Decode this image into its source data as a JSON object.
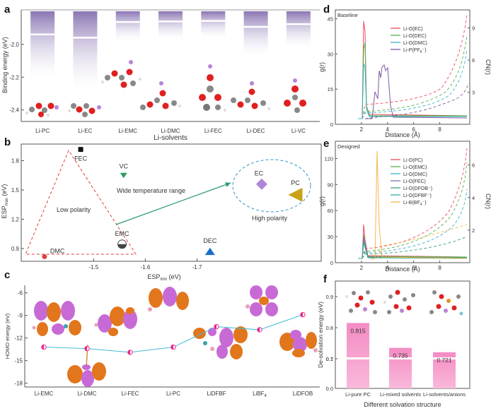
{
  "panel_labels": {
    "a": "a",
    "b": "b",
    "c": "c",
    "d": "d",
    "e": "e",
    "f": "f"
  },
  "chart_data": [
    {
      "panel": "a",
      "type": "bar",
      "xlabel": "Li-solvents",
      "ylabel": "Binding energy (eV)",
      "categories": [
        "Li-PC",
        "Li-EC",
        "Li-EMC",
        "Li-DMC",
        "Li-FEC",
        "Li-DEC",
        "Li-VC"
      ],
      "values": [
        -2.21,
        -2.27,
        -1.98,
        -1.97,
        -1.96,
        -2.07,
        -2.02
      ],
      "ylim": [
        -2.47,
        -1.79
      ],
      "yticks": [
        "-2.0",
        "-2.2",
        "-2.4"
      ],
      "bar_color": "#8f7cb5"
    },
    {
      "panel": "b",
      "type": "scatter",
      "xlabel_main": "ESP",
      "xlabel_sub": "min",
      "xlabel_unit": " (eV)",
      "ylabel_main": "ESP",
      "ylabel_sub": "max",
      "ylabel_unit": " (eV)",
      "xticks": [
        "-1.5",
        "-1.6",
        "-1.7"
      ],
      "yticks": [
        "1.8",
        "1.5",
        "1.2",
        "0.9"
      ],
      "points": [
        {
          "name": "FEC",
          "x": -1.475,
          "y": 1.915,
          "color": "#111111",
          "marker": "square"
        },
        {
          "name": "VC",
          "x": -1.558,
          "y": 1.65,
          "color": "#2e9a5e",
          "marker": "triangle-down"
        },
        {
          "name": "EC",
          "x": -1.825,
          "y": 1.56,
          "color": "#b085d8",
          "marker": "diamond"
        },
        {
          "name": "PC",
          "x": -1.89,
          "y": 1.45,
          "color": "#c9a21a",
          "marker": "triangle-left"
        },
        {
          "name": "EMC",
          "x": -1.555,
          "y": 0.945,
          "color": "#444444",
          "marker": "half-circle"
        },
        {
          "name": "DMC",
          "x": -1.405,
          "y": 0.818,
          "color": "#e0413c",
          "marker": "circle"
        },
        {
          "name": "DEC",
          "x": -1.725,
          "y": 0.87,
          "color": "#1b6fc9",
          "marker": "triangle-up"
        }
      ],
      "annotations": {
        "low": "Low polarity",
        "high": "High polarity",
        "arrow": "Wide temperature range"
      }
    },
    {
      "panel": "c",
      "type": "line",
      "ylabel": "HOMO energy (eV)",
      "yticks": [
        "-6",
        "-9",
        "-12",
        "-15",
        "-18"
      ],
      "ylim": [
        -18.5,
        -5
      ],
      "categories": [
        "Li-EMC",
        "Li-DMC",
        "Li-FEC",
        "Li-PC",
        "LiDFBF",
        "LiBF4",
        "LiDFOB"
      ],
      "cat_main": [
        "Li-EMC",
        "Li-DMC",
        "Li-FEC",
        "Li-PC",
        "LiDFBF",
        "LiBF",
        "LiDFOB"
      ],
      "cat_sub": [
        "",
        "",
        "",
        "",
        "",
        "4",
        ""
      ],
      "values": [
        -13.2,
        -13.4,
        -13.9,
        -13.2,
        -10.5,
        -10.9,
        -8.9
      ],
      "line_color": "#43bcd6",
      "marker_color": "#e8268c"
    },
    {
      "panel": "d",
      "type": "line",
      "title": "Baseline",
      "xlabel": "Distance (Å)",
      "ylabel": "g(r)",
      "ylabel2": "CN(r)",
      "xticks": [
        "2",
        "4",
        "6",
        "8"
      ],
      "yticks": [
        "45",
        "30",
        "15",
        "0"
      ],
      "yticks2": [
        "9",
        "6",
        "3"
      ],
      "series": [
        {
          "name": "Li-O(EC)",
          "color": "#ee4b5a"
        },
        {
          "name": "Li-O(DEC)",
          "color": "#53b44b"
        },
        {
          "name": "Li-O(DMC)",
          "color": "#3bb4c9"
        },
        {
          "name": "Li-P(PF6-)",
          "color": "#7e5aa2"
        }
      ],
      "legend_main": [
        "Li-O(EC)",
        "Li-O(DEC)",
        "Li-O(DMC)",
        "Li-P(PF"
      ],
      "legend_sub": [
        "",
        "",
        "",
        "6"
      ],
      "legend_tail": [
        "",
        "",
        "",
        "⁻)"
      ]
    },
    {
      "panel": "e",
      "type": "line",
      "title": "Designed",
      "xlabel": "Distance (Å)",
      "ylabel": "g(r)",
      "ylabel2": "CN(r)",
      "xticks": [
        "2",
        "4",
        "6",
        "8"
      ],
      "yticks": [
        "120",
        "90",
        "60",
        "30",
        "0"
      ],
      "yticks2": [
        "6",
        "4",
        "2"
      ],
      "series": [
        {
          "name": "Li-O(PC)",
          "color": "#ee4b5a"
        },
        {
          "name": "Li-O(EMC)",
          "color": "#53b44b"
        },
        {
          "name": "Li-O(DMC)",
          "color": "#3bb4c9"
        },
        {
          "name": "Li-O(FEC)",
          "color": "#8a6fb0"
        },
        {
          "name": "Li-O(DFOB-)",
          "color": "#3a9e7e"
        },
        {
          "name": "Li-O(DFBF-)",
          "color": "#2bb0a0"
        },
        {
          "name": "Li-B(BF4-)",
          "color": "#f4b84a"
        }
      ],
      "legend_main": [
        "Li-O(PC)",
        "Li-O(EMC)",
        "Li-O(DMC)",
        "Li-O(FEC)",
        "Li-O(DFOB",
        "Li-O(DFBF",
        "Li-B(BF"
      ],
      "legend_sub": [
        "",
        "",
        "",
        "",
        "",
        "",
        "4"
      ],
      "legend_tail": [
        "",
        "",
        "",
        "",
        "⁻)",
        "⁻)",
        "⁻)"
      ]
    },
    {
      "panel": "f",
      "type": "bar",
      "xlabel": "Different solvation structure",
      "ylabel": "De-solvation energy (eV)",
      "categories": [
        "Li-pure PC",
        "Li-mixed solvents",
        "Li-solvents/anions"
      ],
      "values": [
        0.815,
        0.735,
        0.721
      ],
      "labels": [
        "0.815",
        "0.735",
        "0.721"
      ],
      "yticks": [
        "0.9",
        "0.8",
        "0.7",
        "0.1",
        "0.0"
      ],
      "bar_color": "#f29ac9"
    }
  ]
}
